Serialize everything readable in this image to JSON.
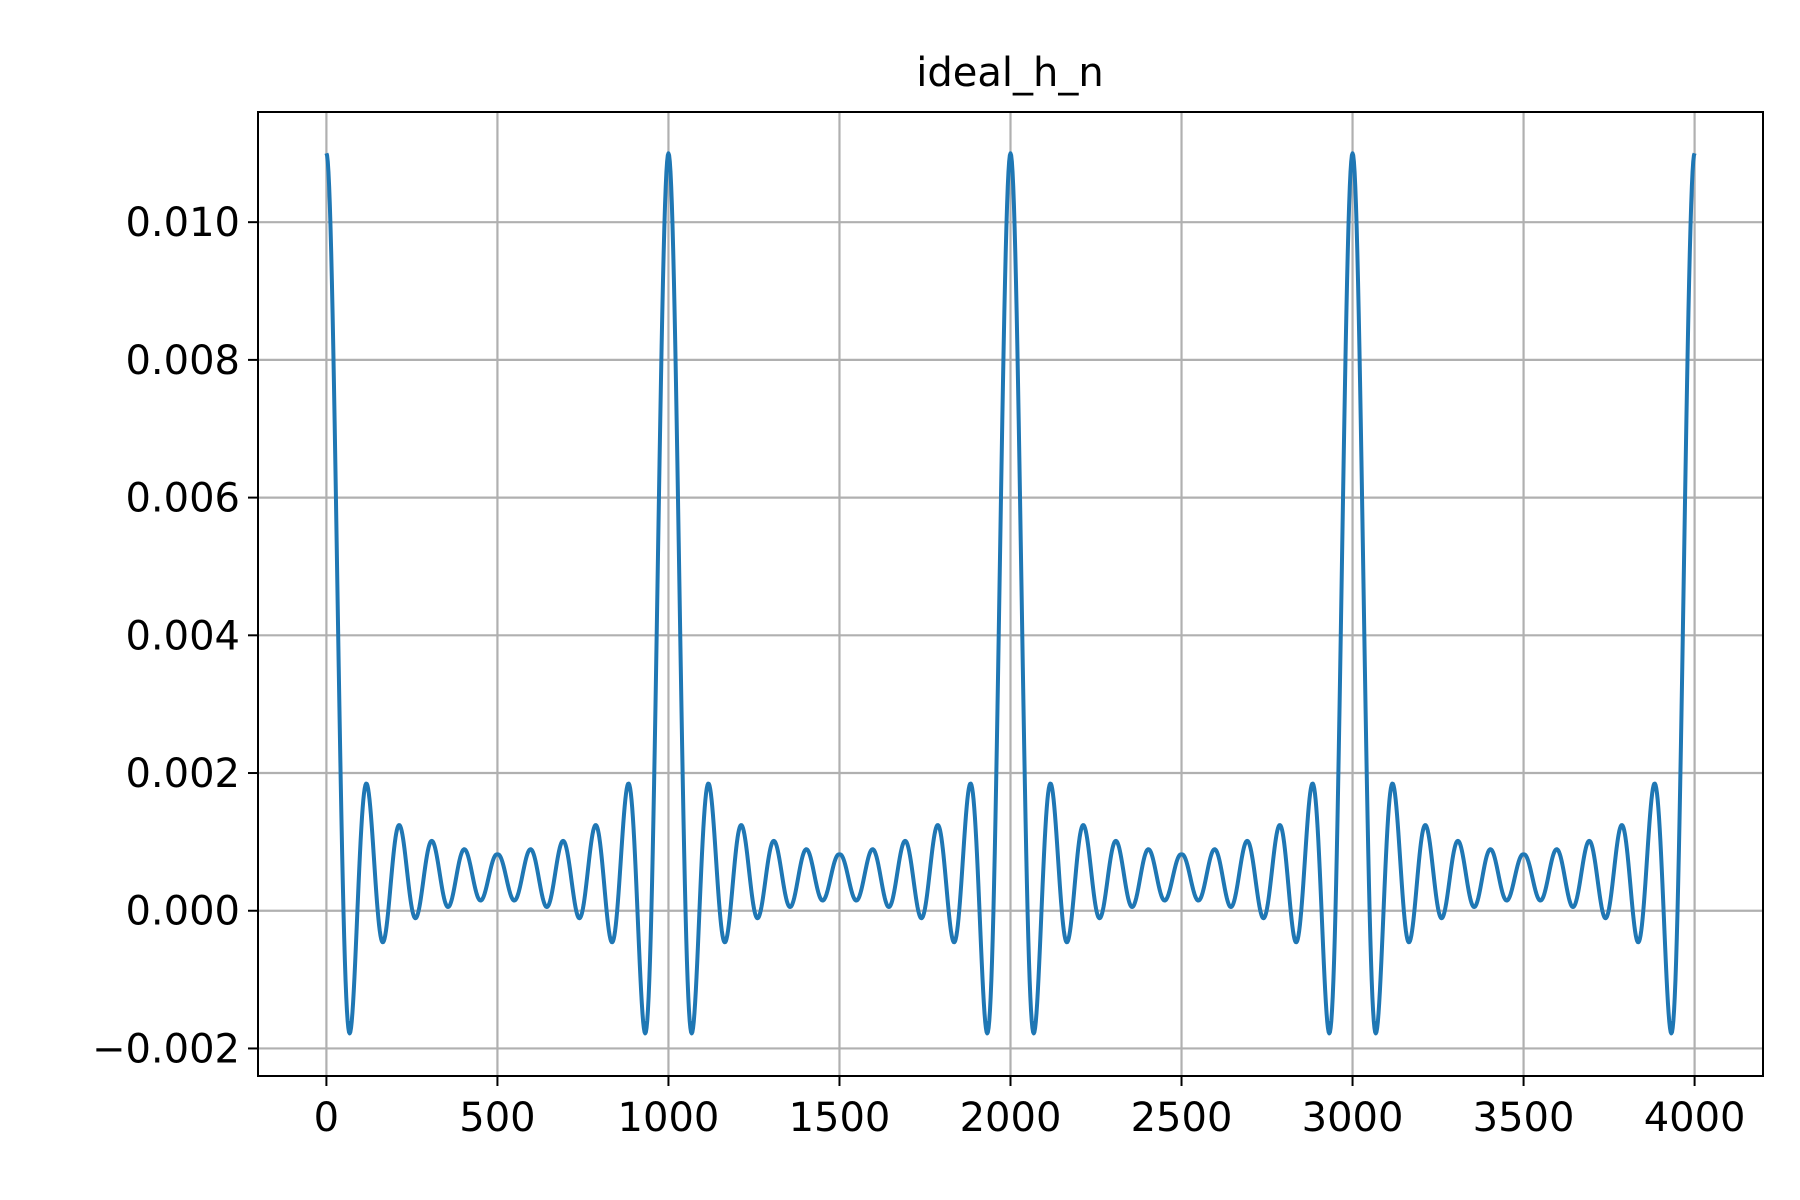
{
  "chart_data": {
    "type": "line",
    "title": "ideal_h_n",
    "xlabel": "",
    "ylabel": "",
    "xlim": [
      -200,
      4200
    ],
    "ylim": [
      -0.0024,
      0.0116
    ],
    "x_ticks": [
      0,
      500,
      1000,
      1500,
      2000,
      2500,
      3000,
      3500,
      4000
    ],
    "x_tick_labels": [
      "0",
      "500",
      "1000",
      "1500",
      "2000",
      "2500",
      "3000",
      "3500",
      "4000"
    ],
    "y_ticks": [
      -0.002,
      0.0,
      0.002,
      0.004,
      0.006,
      0.008,
      0.01
    ],
    "y_tick_labels": [
      "−0.002",
      "0.000",
      "0.002",
      "0.004",
      "0.006",
      "0.008",
      "0.010"
    ],
    "grid": true,
    "legend": "none",
    "series": [
      {
        "color": "#1f77b4",
        "period": 1000,
        "x_range": [
          0,
          4000
        ],
        "peak_value": 0.011,
        "first_trough_value": -0.0018,
        "first_sidelobe_value": 0.0019,
        "ripple_center": 0.0005
      }
    ]
  }
}
